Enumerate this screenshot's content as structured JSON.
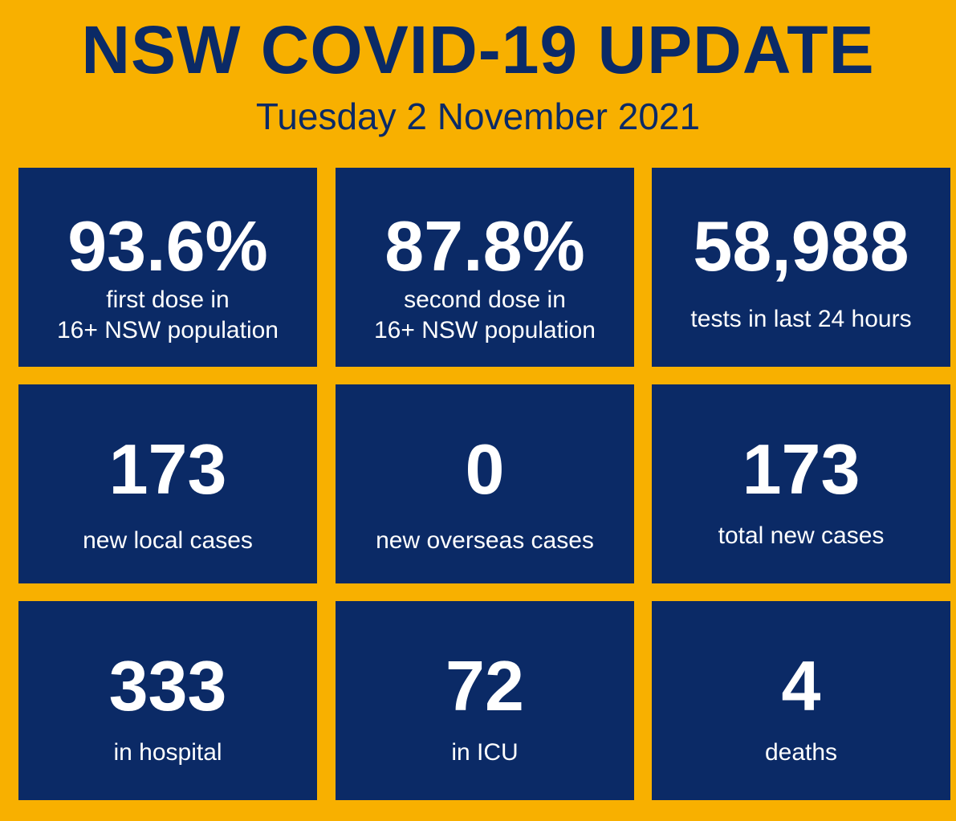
{
  "title": "NSW COVID-19 UPDATE",
  "date": "Tuesday 2 November 2021",
  "colors": {
    "background": "#F8B000",
    "card": "#0B2A66",
    "text_on_card": "#FFFFFF",
    "title": "#0B2A66"
  },
  "stats": [
    {
      "value": "93.6%",
      "label": "first dose in\n16+ NSW population"
    },
    {
      "value": "87.8%",
      "label": "second dose in\n16+ NSW population"
    },
    {
      "value": "58,988",
      "label": "tests in last 24 hours"
    },
    {
      "value": "173",
      "label": "new local cases"
    },
    {
      "value": "0",
      "label": "new overseas cases"
    },
    {
      "value": "173",
      "label": "total new cases"
    },
    {
      "value": "333",
      "label": "in hospital"
    },
    {
      "value": "72",
      "label": "in ICU"
    },
    {
      "value": "4",
      "label": "deaths"
    }
  ]
}
